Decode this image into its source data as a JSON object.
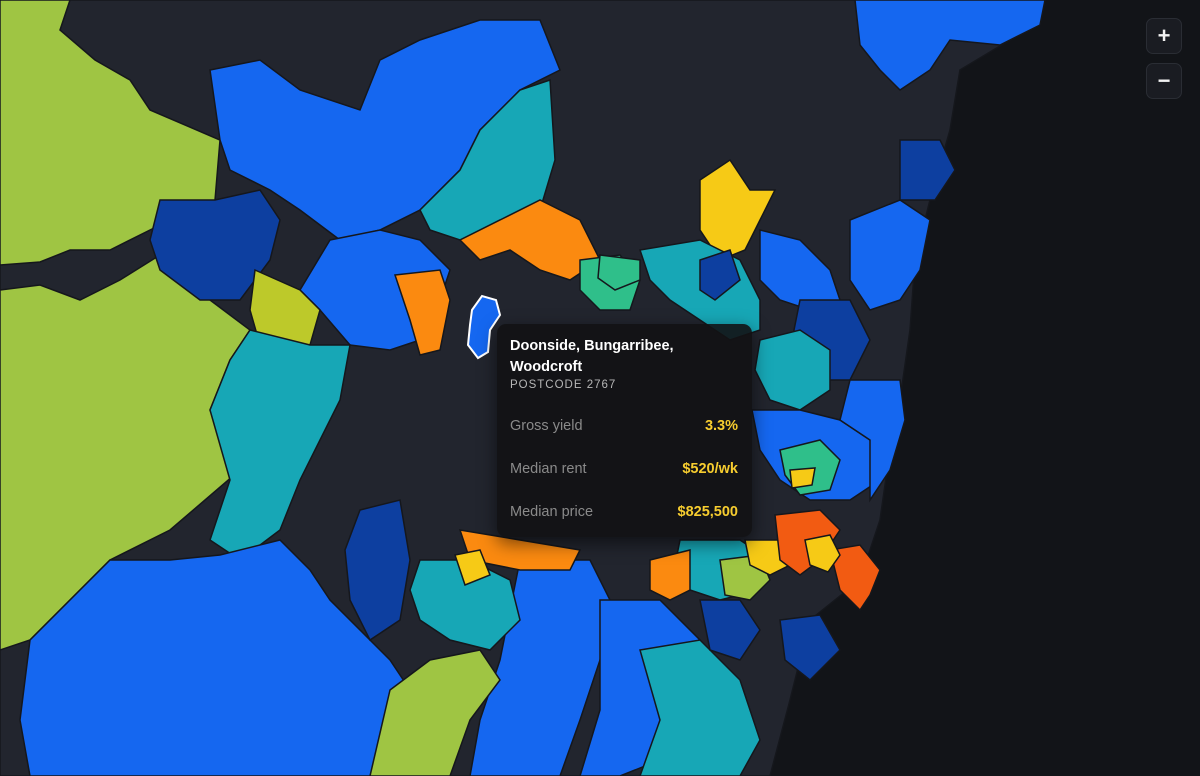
{
  "tooltip": {
    "title": "Doonside, Bungarribee, Woodcroft",
    "postcode": "POSTCODE 2767",
    "metrics": [
      {
        "label": "Gross yield",
        "value": "3.3%"
      },
      {
        "label": "Median rent",
        "value": "$520/wk"
      },
      {
        "label": "Median price",
        "value": "$825,500"
      }
    ]
  },
  "controls": {
    "zoom_in": "+",
    "zoom_out": "−"
  },
  "colors": {
    "background_water": "#121418",
    "no_data_land": "#22252e",
    "scale": [
      "#1567f0",
      "#0d3fa0",
      "#17a7b6",
      "#2fbf8a",
      "#9fc543",
      "#f6ca16",
      "#fb8a10",
      "#f25b12"
    ],
    "tooltip_value": "#f7cd2f",
    "highlight_outline": "#ffffff"
  }
}
